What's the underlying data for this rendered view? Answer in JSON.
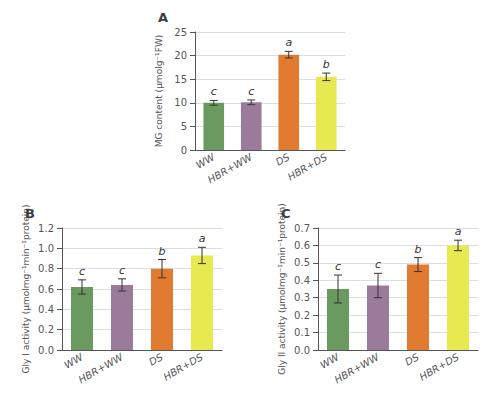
{
  "chart_data": [
    {
      "type": "bar",
      "title": "A",
      "categories": [
        "WW",
        "HBR+WW",
        "DS",
        "HBR+DS"
      ],
      "values": [
        10.0,
        10.1,
        20.2,
        15.5
      ],
      "errors": [
        0.5,
        0.5,
        0.7,
        0.8
      ],
      "letters": [
        "c",
        "c",
        "a",
        "b"
      ],
      "colors": [
        "#6a9a5f",
        "#9b7b9b",
        "#e07b30",
        "#e8e850"
      ],
      "ylabel": "MG content (μmolg⁻¹FW)",
      "ylim": [
        0,
        25
      ],
      "yticks": [
        0,
        5,
        10,
        15,
        20,
        25
      ]
    },
    {
      "type": "bar",
      "title": "B",
      "categories": [
        "WW",
        "HBR+WW",
        "DS",
        "HBR+DS"
      ],
      "values": [
        0.62,
        0.64,
        0.8,
        0.93
      ],
      "errors": [
        0.07,
        0.06,
        0.09,
        0.08
      ],
      "letters": [
        "c",
        "c",
        "b",
        "a"
      ],
      "colors": [
        "#6a9a5f",
        "#9b7b9b",
        "#e07b30",
        "#e8e850"
      ],
      "ylabel": "Gly I activity (μmolmg⁻¹min⁻¹protein)",
      "ylim": [
        0,
        1.2
      ],
      "yticks": [
        {
          "value": 0,
          "label": "0.0"
        },
        0.2,
        0.4,
        0.6,
        0.8,
        {
          "value": 1,
          "label": "1.0"
        },
        1.2
      ]
    },
    {
      "type": "bar",
      "title": "C",
      "categories": [
        "WW",
        "HBR+WW",
        "DS",
        "HBR+DS"
      ],
      "values": [
        0.35,
        0.37,
        0.49,
        0.6
      ],
      "errors": [
        0.08,
        0.07,
        0.04,
        0.03
      ],
      "letters": [
        "c",
        "c",
        "b",
        "a"
      ],
      "colors": [
        "#6a9a5f",
        "#9b7b9b",
        "#e07b30",
        "#e8e850"
      ],
      "ylabel": "Gly II activity (μmolmg⁻¹min⁻¹protein)",
      "ylim": [
        0,
        0.7
      ],
      "yticks": [
        {
          "value": 0,
          "label": "0.0"
        },
        0.1,
        0.2,
        0.3,
        0.4,
        0.5,
        0.6,
        0.7
      ]
    }
  ]
}
